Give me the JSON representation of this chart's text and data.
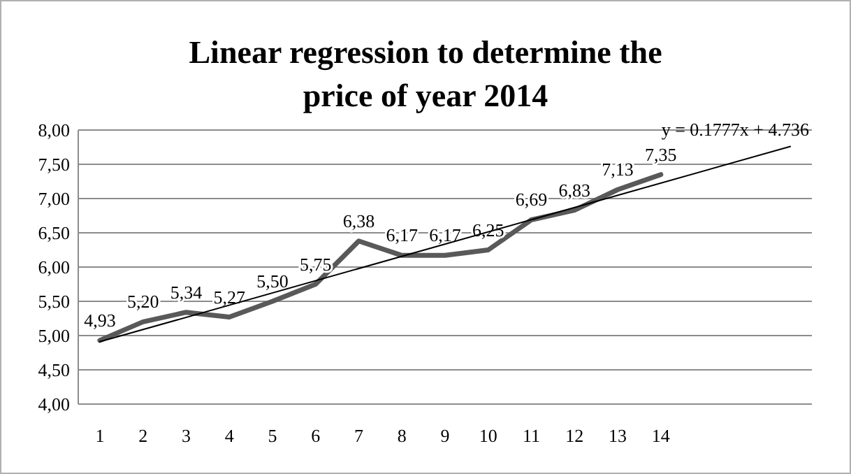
{
  "chart_data": {
    "type": "line",
    "title": "Linear regression to determine the price of year 2014",
    "x": [
      1,
      2,
      3,
      4,
      5,
      6,
      7,
      8,
      9,
      10,
      11,
      12,
      13,
      14
    ],
    "series": [
      {
        "color": "#595959",
        "values": [
          4.93,
          5.2,
          5.34,
          5.27,
          5.5,
          5.75,
          6.38,
          6.17,
          6.17,
          6.25,
          6.69,
          6.83,
          7.13,
          7.35
        ],
        "value_labels": [
          "4,93",
          "5,20",
          "5,34",
          "5,27",
          "5,50",
          "5,75",
          "6,38",
          "6,17",
          "6,17",
          "6,25",
          "6,69",
          "6,83",
          "7,13",
          "7,35"
        ]
      },
      {
        "color": "#000000",
        "x": [
          1,
          17
        ],
        "values": [
          4.91,
          7.76
        ]
      }
    ],
    "xlim": [
      0.5,
      17.5
    ],
    "xticks": [
      1,
      2,
      3,
      4,
      5,
      6,
      7,
      8,
      9,
      10,
      11,
      12,
      13,
      14
    ],
    "ylim": [
      4,
      8
    ],
    "yticks": [
      {
        "value": 4,
        "label": "4,00"
      },
      {
        "value": 4.5,
        "label": "4,50"
      },
      {
        "value": 5,
        "label": "5,00"
      },
      {
        "value": 5.5,
        "label": "5,50"
      },
      {
        "value": 6,
        "label": "6,00"
      },
      {
        "value": 6.5,
        "label": "6,50"
      },
      {
        "value": 7,
        "label": "7,00"
      },
      {
        "value": 7.5,
        "label": "7,50"
      },
      {
        "value": 8,
        "label": "8,00"
      }
    ],
    "grid": "y",
    "marker": "none",
    "line_style": "solid",
    "annotations": [
      "y = 0.1777x + 4.736"
    ]
  }
}
